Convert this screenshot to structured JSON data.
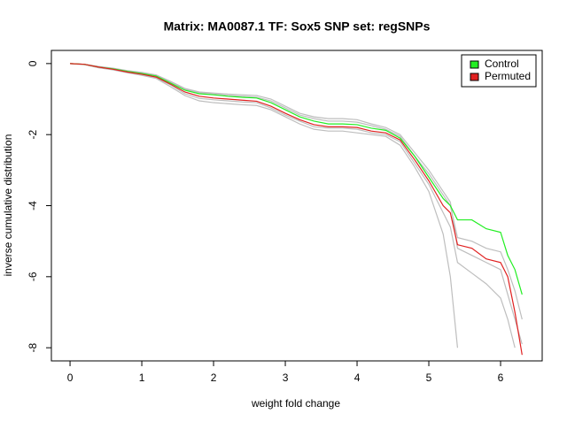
{
  "chart_data": {
    "type": "line",
    "title": "Matrix: MA0087.1 TF: Sox5 SNP set: regSNPs",
    "x_label": "weight fold change",
    "y_label": "inverse cumulative distribution",
    "x": [
      0,
      0.2,
      0.4,
      0.6,
      0.8,
      1.0,
      1.2,
      1.4,
      1.6,
      1.8,
      2.0,
      2.2,
      2.4,
      2.6,
      2.8,
      3.0,
      3.2,
      3.4,
      3.6,
      3.8,
      4.0,
      4.2,
      4.4,
      4.6,
      4.8,
      5.0,
      5.2,
      5.3,
      5.4,
      5.6,
      5.8,
      6.0,
      6.1,
      6.2,
      6.3
    ],
    "series": [
      {
        "color": "#bebebe",
        "values": [
          0,
          -0.03,
          -0.12,
          -0.18,
          -0.26,
          -0.33,
          -0.42,
          -0.65,
          -0.9,
          -1.05,
          -1.1,
          -1.13,
          -1.16,
          -1.18,
          -1.3,
          -1.5,
          -1.7,
          -1.85,
          -1.9,
          -1.9,
          -1.95,
          -2.0,
          -2.05,
          -2.3,
          -2.9,
          -3.6,
          -4.8,
          -6.0,
          -8.0,
          null,
          null,
          null,
          null,
          null,
          null
        ]
      },
      {
        "color": "#bebebe",
        "values": [
          0,
          -0.02,
          -0.08,
          -0.13,
          -0.2,
          -0.25,
          -0.32,
          -0.5,
          -0.7,
          -0.8,
          -0.83,
          -0.86,
          -0.88,
          -0.9,
          -1.0,
          -1.2,
          -1.4,
          -1.5,
          -1.55,
          -1.55,
          -1.58,
          -1.7,
          -1.8,
          -2.0,
          -2.5,
          -3.0,
          -3.6,
          -3.9,
          -5.2,
          -5.4,
          -5.6,
          -5.8,
          -6.5,
          -7.2,
          -7.9
        ]
      },
      {
        "color": "#bebebe",
        "values": [
          0,
          -0.03,
          -0.11,
          -0.17,
          -0.25,
          -0.31,
          -0.4,
          -0.6,
          -0.85,
          -0.98,
          -1.02,
          -1.05,
          -1.08,
          -1.1,
          -1.25,
          -1.45,
          -1.62,
          -1.78,
          -1.82,
          -1.82,
          -1.85,
          -1.95,
          -2.0,
          -2.2,
          -2.8,
          -3.4,
          -4.2,
          -4.6,
          -5.6,
          -5.9,
          -6.2,
          -6.6,
          -7.2,
          -8.0,
          null
        ]
      },
      {
        "color": "#bebebe",
        "values": [
          0,
          -0.02,
          -0.09,
          -0.14,
          -0.21,
          -0.27,
          -0.34,
          -0.52,
          -0.72,
          -0.82,
          -0.86,
          -0.9,
          -0.92,
          -0.95,
          -1.05,
          -1.25,
          -1.45,
          -1.55,
          -1.62,
          -1.62,
          -1.65,
          -1.75,
          -1.85,
          -2.05,
          -2.6,
          -3.1,
          -3.7,
          -4.0,
          -4.9,
          -5.0,
          -5.2,
          -5.3,
          -5.8,
          -6.4,
          -7.2
        ]
      },
      {
        "name": "Control",
        "color": "#22ee22",
        "values": [
          0,
          -0.02,
          -0.1,
          -0.15,
          -0.22,
          -0.28,
          -0.35,
          -0.55,
          -0.75,
          -0.85,
          -0.88,
          -0.92,
          -0.95,
          -0.97,
          -1.1,
          -1.3,
          -1.5,
          -1.62,
          -1.7,
          -1.7,
          -1.72,
          -1.82,
          -1.88,
          -2.1,
          -2.6,
          -3.2,
          -3.8,
          -4.0,
          -4.4,
          -4.4,
          -4.65,
          -4.75,
          -5.4,
          -5.8,
          -6.5
        ]
      },
      {
        "name": "Permuted",
        "color": "#e02020",
        "values": [
          0,
          -0.02,
          -0.1,
          -0.16,
          -0.24,
          -0.3,
          -0.38,
          -0.58,
          -0.8,
          -0.92,
          -0.97,
          -1.0,
          -1.03,
          -1.06,
          -1.2,
          -1.4,
          -1.58,
          -1.72,
          -1.78,
          -1.78,
          -1.8,
          -1.9,
          -1.95,
          -2.15,
          -2.7,
          -3.3,
          -4.0,
          -4.2,
          -5.1,
          -5.2,
          -5.5,
          -5.6,
          -6.0,
          -7.0,
          -8.2
        ]
      }
    ],
    "xlim": [
      -0.26,
      6.58
    ],
    "xticks": [
      0,
      1,
      2,
      3,
      4,
      5,
      6
    ],
    "ylim": [
      -8.37,
      0.37
    ],
    "yticks": [
      0,
      -2,
      -4,
      -6,
      -8
    ],
    "legend": "top-right"
  }
}
